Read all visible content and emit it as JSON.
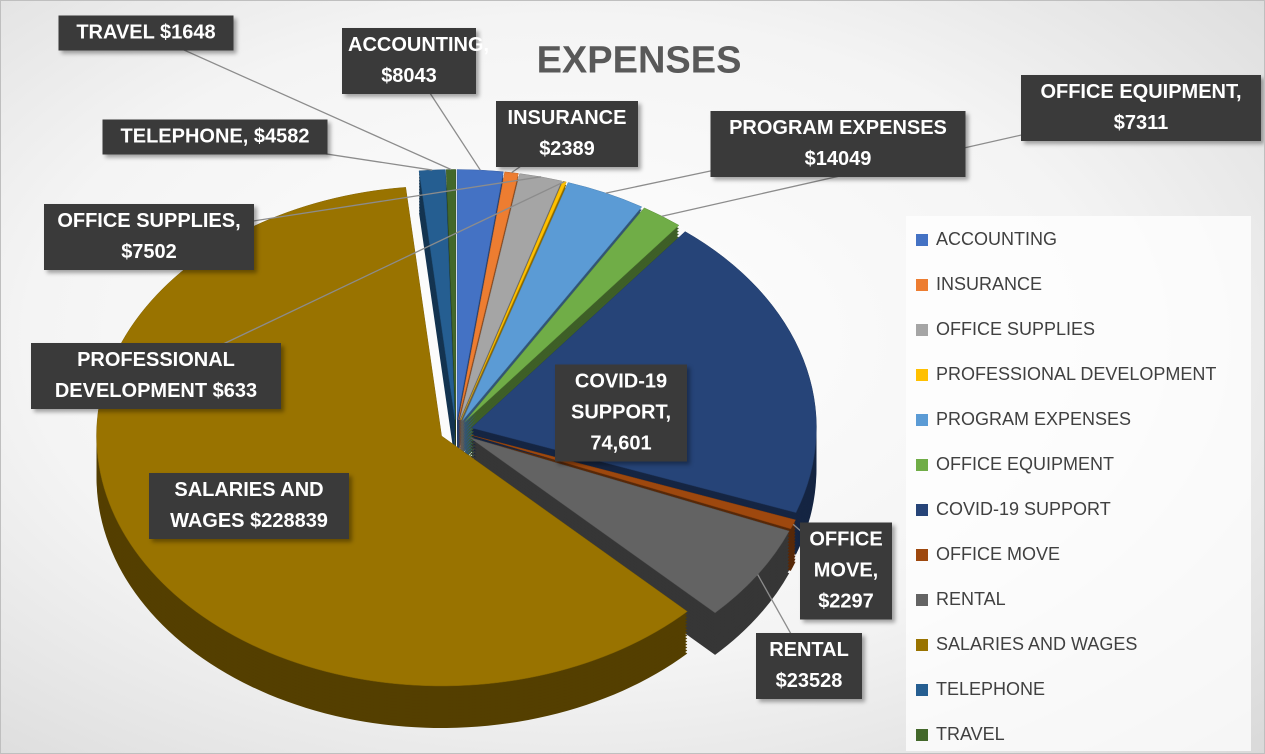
{
  "chart_data": {
    "type": "pie",
    "title": "EXPENSES",
    "categories": [
      "ACCOUNTING",
      "INSURANCE",
      "OFFICE SUPPLIES",
      "PROFESSIONAL DEVELOPMENT",
      "PROGRAM EXPENSES",
      "OFFICE EQUIPMENT",
      "COVID-19 SUPPORT",
      "OFFICE MOVE",
      "RENTAL",
      "SALARIES AND WAGES",
      "TELEPHONE",
      "TRAVEL"
    ],
    "values": [
      8043,
      2389,
      7502,
      633,
      14049,
      7311,
      74601,
      2297,
      23528,
      228839,
      4582,
      1648
    ],
    "value_labels": [
      "ACCOUNTING, $8043",
      "INSURANCE $2389",
      "OFFICE SUPPLIES, $7502",
      "PROFESSIONAL DEVELOPMENT $633",
      "PROGRAM EXPENSES $14049",
      "OFFICE EQUIPMENT, $7311",
      "COVID-19 SUPPORT, 74,601",
      "OFFICE MOVE, $2297",
      "RENTAL $23528",
      "SALARIES AND WAGES $228839",
      "TELEPHONE, $4582",
      "TRAVEL $1648"
    ],
    "colors": [
      "#4472c4",
      "#ed7d31",
      "#a5a5a5",
      "#ffc000",
      "#5b9bd5",
      "#70ad47",
      "#264478",
      "#9e480e",
      "#636363",
      "#997300",
      "#255e91",
      "#43682b"
    ],
    "legend": "right"
  }
}
